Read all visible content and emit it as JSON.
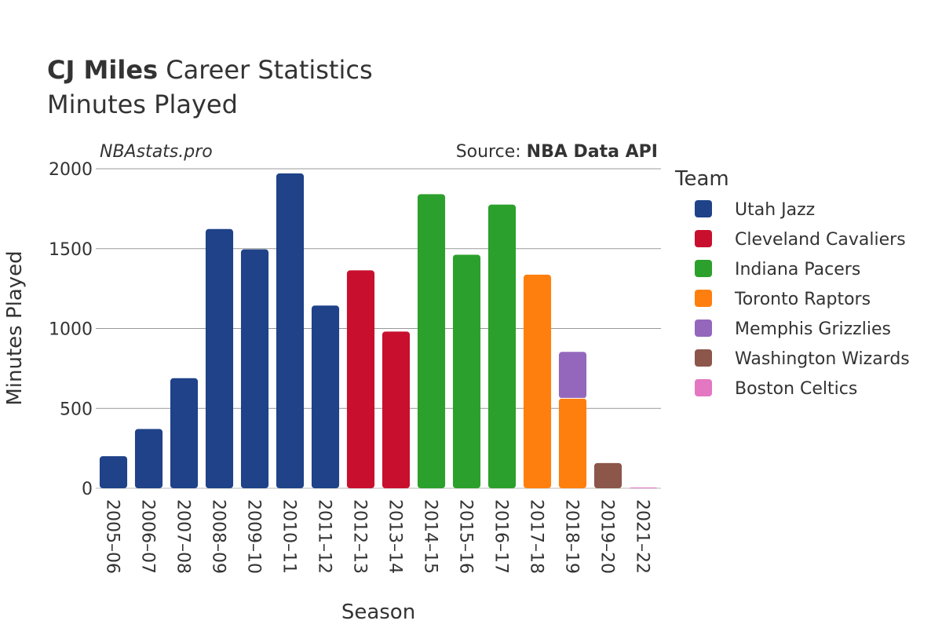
{
  "title_bold": "CJ Miles",
  "title_rest": " Career Statistics",
  "subtitle": "Minutes Played",
  "brand": "NBAstats.pro",
  "source_prefix": "Source: ",
  "source_bold": "NBA Data API",
  "legend_title": "Team",
  "chart_data": {
    "type": "bar",
    "stacked": true,
    "xlabel": "Season",
    "ylabel": "Minutes Played",
    "ylim": [
      0,
      2000
    ],
    "yticks": [
      0,
      500,
      1000,
      1500,
      2000
    ],
    "grid": true,
    "legend_position": "right",
    "categories": [
      "2005–06",
      "2006–07",
      "2007–08",
      "2008–09",
      "2009–10",
      "2010–11",
      "2011–12",
      "2012–13",
      "2013–14",
      "2014–15",
      "2015–16",
      "2016–17",
      "2017–18",
      "2018–19",
      "2019–20",
      "2021–22"
    ],
    "series": [
      {
        "name": "Utah Jazz",
        "color": "#1f4289",
        "values": [
          201,
          371,
          689,
          1623,
          1496,
          1971,
          1144,
          0,
          0,
          0,
          0,
          0,
          0,
          0,
          0,
          0
        ]
      },
      {
        "name": "Cleveland Cavaliers",
        "color": "#c8102e",
        "values": [
          0,
          0,
          0,
          0,
          0,
          0,
          0,
          1364,
          981,
          0,
          0,
          0,
          0,
          0,
          0,
          0
        ]
      },
      {
        "name": "Indiana Pacers",
        "color": "#2ca02c",
        "values": [
          0,
          0,
          0,
          0,
          0,
          0,
          0,
          0,
          0,
          1841,
          1462,
          1776,
          0,
          0,
          0,
          0
        ]
      },
      {
        "name": "Toronto Raptors",
        "color": "#ff7f0e",
        "values": [
          0,
          0,
          0,
          0,
          0,
          0,
          0,
          0,
          0,
          0,
          0,
          0,
          1337,
          563,
          0,
          0
        ]
      },
      {
        "name": "Memphis Grizzlies",
        "color": "#9467bd",
        "values": [
          0,
          0,
          0,
          0,
          0,
          0,
          0,
          0,
          0,
          0,
          0,
          0,
          0,
          291,
          0,
          0
        ]
      },
      {
        "name": "Washington Wizards",
        "color": "#8c564b",
        "values": [
          0,
          0,
          0,
          0,
          0,
          0,
          0,
          0,
          0,
          0,
          0,
          0,
          0,
          0,
          158,
          0
        ]
      },
      {
        "name": "Boston Celtics",
        "color": "#e377c2",
        "values": [
          0,
          0,
          0,
          0,
          0,
          0,
          0,
          0,
          0,
          0,
          0,
          0,
          0,
          0,
          0,
          3
        ]
      }
    ]
  }
}
